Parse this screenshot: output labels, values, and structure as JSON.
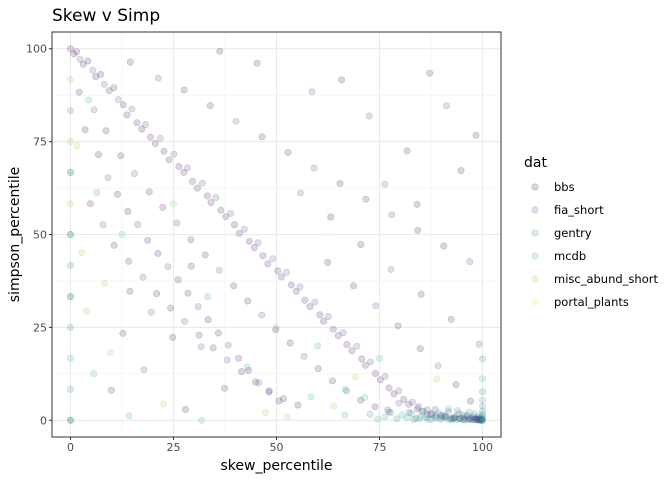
{
  "chart_data": {
    "type": "scatter",
    "title": "Skew v Simp",
    "xlabel": "skew_percentile",
    "ylabel": "simpson_percentile",
    "xlim": [
      -4.5,
      104.5
    ],
    "ylim": [
      -4.5,
      104.5
    ],
    "x_ticks": [
      0,
      25,
      50,
      75,
      100
    ],
    "y_ticks": [
      0,
      25,
      50,
      75,
      100
    ],
    "grid": true,
    "legend_title": "dat",
    "legend_position": "right",
    "point_alpha": 0.12,
    "series": [
      {
        "name": "bbs",
        "color": "#440154"
      },
      {
        "name": "fia_short",
        "color": "#414487"
      },
      {
        "name": "gentry",
        "color": "#2A788E"
      },
      {
        "name": "mcdb",
        "color": "#22A884"
      },
      {
        "name": "misc_abund_short",
        "color": "#7AD151"
      },
      {
        "name": "portal_plants",
        "color": "#FDE725"
      }
    ],
    "points": [
      [
        0,
        100,
        0
      ],
      [
        0.8,
        98.6,
        0
      ],
      [
        1.5,
        99.2,
        0
      ],
      [
        2.3,
        97.1,
        1
      ],
      [
        3.1,
        95.8,
        0
      ],
      [
        4.2,
        96.7,
        0
      ],
      [
        5.4,
        94.2,
        1
      ],
      [
        6.1,
        92.5,
        0
      ],
      [
        7.3,
        93.1,
        0
      ],
      [
        8.2,
        90.4,
        1
      ],
      [
        9.4,
        88.7,
        0
      ],
      [
        10.5,
        89.5,
        0
      ],
      [
        11.6,
        86.3,
        1
      ],
      [
        12.8,
        84.9,
        0
      ],
      [
        13.7,
        82.2,
        0
      ],
      [
        14.9,
        83.8,
        1
      ],
      [
        16.1,
        80.1,
        0
      ],
      [
        17.3,
        78.4,
        0
      ],
      [
        18.2,
        79.6,
        1
      ],
      [
        19.4,
        76.2,
        0
      ],
      [
        20.6,
        74.5,
        0
      ],
      [
        21.8,
        75.9,
        1
      ],
      [
        22.7,
        72.4,
        0
      ],
      [
        23.9,
        70.1,
        0
      ],
      [
        25.1,
        71.6,
        1
      ],
      [
        26.3,
        68.3,
        0
      ],
      [
        27.5,
        66.7,
        0
      ],
      [
        28.4,
        67.9,
        1
      ],
      [
        29.6,
        64.3,
        0
      ],
      [
        30.8,
        62.5,
        0
      ],
      [
        32.0,
        63.8,
        1
      ],
      [
        33.2,
        60.4,
        0
      ],
      [
        34.1,
        58.6,
        0
      ],
      [
        35.3,
        59.9,
        1
      ],
      [
        36.5,
        56.5,
        0
      ],
      [
        37.7,
        54.8,
        0
      ],
      [
        38.9,
        55.7,
        1
      ],
      [
        39.8,
        52.6,
        0
      ],
      [
        41.0,
        50.3,
        0
      ],
      [
        42.2,
        51.4,
        1
      ],
      [
        43.4,
        48.2,
        0
      ],
      [
        44.6,
        46.5,
        0
      ],
      [
        45.5,
        47.8,
        1
      ],
      [
        46.7,
        44.3,
        0
      ],
      [
        47.9,
        42.1,
        0
      ],
      [
        49.1,
        43.5,
        1
      ],
      [
        50.3,
        40.2,
        0
      ],
      [
        51.2,
        38.6,
        0
      ],
      [
        52.4,
        39.8,
        1
      ],
      [
        53.6,
        36.4,
        0
      ],
      [
        54.8,
        34.7,
        0
      ],
      [
        55.7,
        35.9,
        1
      ],
      [
        56.9,
        32.3,
        0
      ],
      [
        58.1,
        30.6,
        0
      ],
      [
        59.3,
        31.8,
        1
      ],
      [
        60.5,
        28.4,
        0
      ],
      [
        61.4,
        26.7,
        0
      ],
      [
        62.6,
        27.9,
        1
      ],
      [
        63.8,
        24.5,
        0
      ],
      [
        65.0,
        22.8,
        0
      ],
      [
        66.2,
        23.6,
        1
      ],
      [
        67.1,
        20.4,
        0
      ],
      [
        68.3,
        18.7,
        0
      ],
      [
        69.5,
        19.9,
        1
      ],
      [
        70.7,
        16.5,
        0
      ],
      [
        71.6,
        14.8,
        0
      ],
      [
        72.8,
        15.7,
        1
      ],
      [
        74.0,
        12.6,
        0
      ],
      [
        75.2,
        10.9,
        0
      ],
      [
        76.4,
        11.8,
        1
      ],
      [
        77.3,
        8.7,
        0
      ],
      [
        78.5,
        7.1,
        0
      ],
      [
        79.7,
        7.9,
        1
      ],
      [
        80.9,
        5.6,
        0
      ],
      [
        82.1,
        4.3,
        0
      ],
      [
        83.0,
        4.9,
        1
      ],
      [
        84.2,
        3.1,
        0
      ],
      [
        85.4,
        2.4,
        0
      ],
      [
        86.6,
        2.8,
        1
      ],
      [
        87.5,
        1.7,
        0
      ],
      [
        88.7,
        1.2,
        0
      ],
      [
        89.9,
        1.4,
        1
      ],
      [
        91.1,
        0.8,
        0
      ],
      [
        92.3,
        0.5,
        0
      ],
      [
        93.2,
        0.7,
        1
      ],
      [
        94.4,
        0.4,
        0
      ],
      [
        95.6,
        0.2,
        0
      ],
      [
        96.8,
        0.3,
        1
      ],
      [
        97.7,
        0.1,
        0
      ],
      [
        98.9,
        0.1,
        0
      ],
      [
        3.5,
        78.2,
        0
      ],
      [
        6.8,
        71.5,
        0
      ],
      [
        9.1,
        65.3,
        1
      ],
      [
        11.4,
        60.8,
        0
      ],
      [
        13.9,
        56.2,
        0
      ],
      [
        16.3,
        52.7,
        1
      ],
      [
        18.7,
        48.4,
        0
      ],
      [
        21.2,
        44.9,
        0
      ],
      [
        23.6,
        41.3,
        1
      ],
      [
        26.1,
        37.8,
        0
      ],
      [
        28.5,
        34.2,
        0
      ],
      [
        31.0,
        30.6,
        1
      ],
      [
        33.4,
        27.1,
        0
      ],
      [
        35.9,
        23.5,
        0
      ],
      [
        38.3,
        20.2,
        1
      ],
      [
        40.8,
        16.7,
        0
      ],
      [
        43.2,
        13.4,
        0
      ],
      [
        45.7,
        10.1,
        1
      ],
      [
        48.1,
        7.6,
        0
      ],
      [
        50.6,
        5.2,
        0
      ],
      [
        2.1,
        88.3,
        0
      ],
      [
        5.7,
        83.6,
        1
      ],
      [
        8.6,
        77.9,
        0
      ],
      [
        12.2,
        71.2,
        0
      ],
      [
        15.5,
        66.4,
        1
      ],
      [
        19.1,
        61.5,
        0
      ],
      [
        22.4,
        57.3,
        0
      ],
      [
        25.8,
        53.1,
        1
      ],
      [
        29.2,
        48.6,
        0
      ],
      [
        32.7,
        44.5,
        0
      ],
      [
        36.1,
        40.4,
        1
      ],
      [
        39.6,
        36.2,
        0
      ],
      [
        43.0,
        32.1,
        0
      ],
      [
        46.4,
        28.3,
        1
      ],
      [
        49.8,
        24.4,
        0
      ],
      [
        53.3,
        20.8,
        0
      ],
      [
        56.7,
        17.2,
        1
      ],
      [
        60.1,
        13.9,
        0
      ],
      [
        63.6,
        10.6,
        0
      ],
      [
        67.0,
        7.9,
        1
      ],
      [
        70.4,
        5.4,
        0
      ],
      [
        73.9,
        3.6,
        0
      ],
      [
        77.3,
        2.2,
        1
      ],
      [
        4.8,
        58.3,
        0
      ],
      [
        7.9,
        52.6,
        1
      ],
      [
        10.6,
        47.1,
        0
      ],
      [
        14.1,
        42.8,
        0
      ],
      [
        17.6,
        38.5,
        1
      ],
      [
        20.9,
        34.1,
        0
      ],
      [
        24.3,
        30.2,
        0
      ],
      [
        27.7,
        26.6,
        1
      ],
      [
        31.2,
        22.9,
        0
      ],
      [
        34.6,
        19.5,
        0
      ],
      [
        38.0,
        16.2,
        1
      ],
      [
        41.5,
        13.1,
        0
      ],
      [
        44.9,
        10.3,
        0
      ],
      [
        48.3,
        7.9,
        1
      ],
      [
        51.7,
        5.8,
        0
      ],
      [
        55.2,
        4.1,
        0
      ],
      [
        14.5,
        96.4,
        0
      ],
      [
        21.3,
        92.1,
        1
      ],
      [
        27.6,
        88.9,
        0
      ],
      [
        33.9,
        84.7,
        0
      ],
      [
        40.2,
        80.5,
        1
      ],
      [
        46.5,
        76.3,
        0
      ],
      [
        52.8,
        72.1,
        0
      ],
      [
        59.1,
        67.9,
        1
      ],
      [
        65.4,
        63.7,
        0
      ],
      [
        71.7,
        59.5,
        0
      ],
      [
        78.0,
        55.3,
        1
      ],
      [
        84.3,
        51.1,
        0
      ],
      [
        90.6,
        46.9,
        0
      ],
      [
        96.9,
        42.7,
        1
      ],
      [
        62.4,
        42.5,
        0
      ],
      [
        68.7,
        36.2,
        0
      ],
      [
        74.1,
        30.8,
        1
      ],
      [
        79.5,
        25.4,
        0
      ],
      [
        84.9,
        19.3,
        0
      ],
      [
        89.2,
        14.7,
        1
      ],
      [
        93.6,
        9.6,
        0
      ],
      [
        97.1,
        5.2,
        0
      ],
      [
        55.8,
        61.2,
        1
      ],
      [
        63.2,
        54.7,
        0
      ],
      [
        70.5,
        47.3,
        0
      ],
      [
        77.8,
        40.6,
        1
      ],
      [
        85.1,
        33.9,
        0
      ],
      [
        92.4,
        27.2,
        0
      ],
      [
        99.2,
        20.5,
        1
      ],
      [
        0,
        0,
        3
      ],
      [
        0,
        0,
        2
      ],
      [
        0,
        8.3,
        2
      ],
      [
        0,
        16.7,
        3
      ],
      [
        0,
        25,
        2
      ],
      [
        0,
        33.3,
        3
      ],
      [
        0,
        41.7,
        2
      ],
      [
        0,
        50,
        3
      ],
      [
        0,
        50,
        2
      ],
      [
        0,
        58.3,
        4
      ],
      [
        0,
        66.7,
        2
      ],
      [
        0,
        75,
        4
      ],
      [
        0,
        83.3,
        2
      ],
      [
        0,
        91.7,
        4
      ],
      [
        0,
        0,
        4
      ],
      [
        0,
        33.3,
        2
      ],
      [
        0,
        66.7,
        3
      ],
      [
        33.3,
        33.3,
        3
      ],
      [
        12.5,
        50,
        3
      ],
      [
        25,
        58.3,
        4
      ],
      [
        66.7,
        8.3,
        3
      ],
      [
        50,
        25,
        4
      ],
      [
        75,
        16.7,
        3
      ],
      [
        88.9,
        11.1,
        4
      ],
      [
        42.9,
        14.3,
        3
      ],
      [
        60,
        20,
        3
      ],
      [
        99.5,
        0.5,
        3
      ],
      [
        99.2,
        1.1,
        3
      ],
      [
        98.7,
        0.3,
        2
      ],
      [
        98.1,
        1.8,
        3
      ],
      [
        97.4,
        0.6,
        3
      ],
      [
        96.8,
        2.2,
        3
      ],
      [
        96.1,
        0.9,
        2
      ],
      [
        95.3,
        1.5,
        3
      ],
      [
        94.7,
        0.4,
        3
      ],
      [
        93.9,
        2.6,
        2
      ],
      [
        93.2,
        1.0,
        3
      ],
      [
        92.5,
        0.2,
        3
      ],
      [
        91.8,
        3.1,
        3
      ],
      [
        90.9,
        1.3,
        2
      ],
      [
        90.1,
        0.6,
        3
      ],
      [
        89.3,
        2.0,
        3
      ],
      [
        88.4,
        0.8,
        3
      ],
      [
        87.6,
        1.6,
        2
      ],
      [
        86.7,
        0.3,
        3
      ],
      [
        85.8,
        2.4,
        3
      ],
      [
        84.9,
        1.1,
        3
      ],
      [
        83.9,
        0.5,
        2
      ],
      [
        82.8,
        1.9,
        3
      ],
      [
        81.7,
        0.7,
        3
      ],
      [
        80.5,
        1.4,
        3
      ],
      [
        79.2,
        0.4,
        2
      ],
      [
        77.8,
        2.1,
        3
      ],
      [
        76.3,
        0.9,
        3
      ],
      [
        74.6,
        0.3,
        3
      ],
      [
        72.7,
        1.6,
        2
      ],
      [
        99.8,
        0,
        2
      ],
      [
        99.6,
        0,
        3
      ],
      [
        99.3,
        0.1,
        2
      ],
      [
        99,
        0.2,
        3
      ],
      [
        98.5,
        0.1,
        2
      ],
      [
        98,
        0.4,
        2
      ],
      [
        97.2,
        0.2,
        3
      ],
      [
        96.4,
        0.3,
        2
      ],
      [
        95.5,
        0.1,
        2
      ],
      [
        94.6,
        0.6,
        3
      ],
      [
        93.7,
        0.2,
        2
      ],
      [
        92.8,
        0.4,
        2
      ],
      [
        91.8,
        0.1,
        3
      ],
      [
        90.8,
        0.9,
        2
      ],
      [
        89.8,
        0.3,
        2
      ],
      [
        88.7,
        0.5,
        3
      ],
      [
        87.5,
        0.2,
        2
      ],
      [
        86.2,
        0.8,
        2
      ],
      [
        84.8,
        0.4,
        3
      ],
      [
        83.3,
        0.2,
        2
      ],
      [
        99.9,
        0,
        1
      ],
      [
        99.7,
        0.2,
        1
      ],
      [
        99.4,
        0.4,
        1
      ],
      [
        99.1,
        0.1,
        1
      ],
      [
        98.8,
        0.7,
        1
      ],
      [
        98.3,
        0.3,
        1
      ],
      [
        97.8,
        1.0,
        1
      ],
      [
        97.1,
        0.5,
        1
      ],
      [
        96.3,
        1.3,
        1
      ],
      [
        95.4,
        0.8,
        1
      ],
      [
        94.3,
        1.7,
        1
      ],
      [
        93.1,
        0.6,
        1
      ],
      [
        91.7,
        2.3,
        1
      ],
      [
        90.2,
        1.1,
        1
      ],
      [
        88.5,
        2.9,
        1
      ],
      [
        86.6,
        1.5,
        1
      ],
      [
        84.5,
        3.7,
        1
      ],
      [
        82.2,
        2.1,
        1
      ],
      [
        79.7,
        4.6,
        1
      ],
      [
        77,
        2.8,
        1
      ],
      [
        100,
        0,
        2
      ],
      [
        100,
        0.2,
        3
      ],
      [
        100,
        0.5,
        2
      ],
      [
        100,
        1.0,
        3
      ],
      [
        100,
        1.6,
        2
      ],
      [
        100,
        2.5,
        3
      ],
      [
        100,
        3.8,
        2
      ],
      [
        100,
        5.4,
        3
      ],
      [
        100,
        7.7,
        2
      ],
      [
        100,
        11.2,
        3
      ],
      [
        100,
        16.5,
        2
      ],
      [
        14.2,
        1.2,
        3
      ],
      [
        22.6,
        4.4,
        4
      ],
      [
        31.8,
        0,
        3
      ],
      [
        47.3,
        2.1,
        4
      ],
      [
        52.7,
        0.9,
        4
      ],
      [
        58.4,
        6.3,
        3
      ],
      [
        63.9,
        3.8,
        4
      ],
      [
        66.6,
        1.4,
        3
      ],
      [
        69.2,
        11.7,
        4
      ],
      [
        71.4,
        6.1,
        3
      ],
      [
        3.9,
        29.4,
        4
      ],
      [
        8.3,
        36.8,
        4
      ],
      [
        5.6,
        12.5,
        3
      ],
      [
        2.7,
        45.1,
        4
      ],
      [
        6.4,
        61.3,
        3
      ],
      [
        1.6,
        73.9,
        4
      ],
      [
        4.4,
        86.2,
        3
      ],
      [
        9.7,
        18.2,
        4
      ],
      [
        45.3,
        96.1,
        0
      ],
      [
        58.6,
        88.4,
        1
      ],
      [
        36.2,
        99.3,
        0
      ],
      [
        81.7,
        72.5,
        0
      ],
      [
        91.3,
        84.6,
        1
      ],
      [
        94.8,
        67.2,
        0
      ],
      [
        87.2,
        93.4,
        0
      ],
      [
        72.5,
        81.9,
        1
      ],
      [
        65.8,
        91.6,
        0
      ],
      [
        98.4,
        76.7,
        0
      ],
      [
        76.3,
        63.5,
        1
      ],
      [
        84.1,
        58.1,
        0
      ],
      [
        29.3,
        41.5,
        0
      ],
      [
        31.7,
        19.8,
        1
      ],
      [
        37.4,
        8.6,
        0
      ],
      [
        24.8,
        22.3,
        0
      ],
      [
        19.6,
        29.1,
        1
      ],
      [
        14.4,
        34.7,
        0
      ],
      [
        9.9,
        8.1,
        0
      ],
      [
        17.8,
        13.6,
        1
      ],
      [
        27.9,
        2.9,
        0
      ],
      [
        12.7,
        23.4,
        0
      ]
    ]
  }
}
